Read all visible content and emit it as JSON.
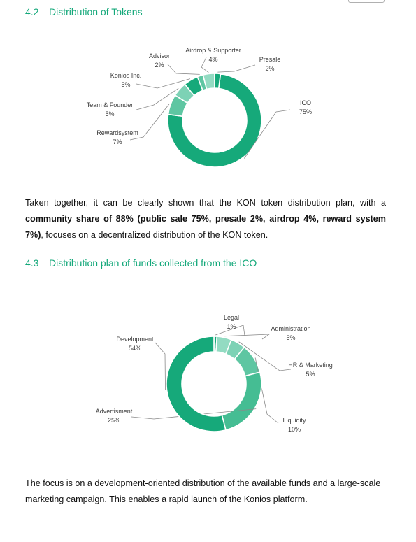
{
  "section_42": {
    "number": "4.2",
    "title": "Distribution of Tokens"
  },
  "paragraph_1": {
    "part1": "Taken together, it can be clearly shown that the KON token distribution plan, with a",
    "bold": "community share of 88% (public sale 75%, presale 2%, airdrop 4%, reward system 7%)",
    "part2": ",",
    "part3": "focuses on a decentralized distribution of the KON token."
  },
  "section_43": {
    "number": "4.3",
    "title": "Distribution plan of funds collected from the ICO"
  },
  "paragraph_2": {
    "line1": "The focus is on a development-oriented distribution of the available funds and a large-scale",
    "line2": "marketing campaign. This enables a rapid launch of the Konios platform."
  },
  "chart_data": [
    {
      "type": "pie",
      "subtype": "donut",
      "categories": [
        "ICO",
        "Rewardsystem",
        "Team & Founder",
        "Konios Inc.",
        "Advisor",
        "Airdrop & Supporter",
        "Presale"
      ],
      "values": [
        75,
        7,
        5,
        5,
        2,
        4,
        2
      ],
      "labels": [
        {
          "name": "ICO",
          "value": "75%"
        },
        {
          "name": "Rewardsystem",
          "value": "7%"
        },
        {
          "name": "Team & Founder",
          "value": "5%"
        },
        {
          "name": "Konios Inc.",
          "value": "5%"
        },
        {
          "name": "Advisor",
          "value": "2%"
        },
        {
          "name": "Airdrop & Supporter",
          "value": "4%"
        },
        {
          "name": "Presale",
          "value": "2%"
        }
      ],
      "colors": [
        "#16a97a",
        "#5ec6a2",
        "#7dd2b5",
        "#16a97a",
        "#5ec6a2",
        "#93dbc2",
        "#16a97a"
      ]
    },
    {
      "type": "pie",
      "subtype": "donut",
      "categories": [
        "Legal",
        "Administration",
        "HR & Marketing",
        "Liquidity",
        "Advertisment",
        "Development"
      ],
      "values": [
        1,
        5,
        5,
        10,
        25,
        54
      ],
      "labels": [
        {
          "name": "Legal",
          "value": "1%"
        },
        {
          "name": "Administration",
          "value": "5%"
        },
        {
          "name": "HR & Marketing",
          "value": "5%"
        },
        {
          "name": "Liquidity",
          "value": "10%"
        },
        {
          "name": "Advertisment",
          "value": "25%"
        },
        {
          "name": "Development",
          "value": "54%"
        }
      ],
      "colors": [
        "#16a97a",
        "#93dbc2",
        "#7dd2b5",
        "#5ec6a2",
        "#45bd93",
        "#16a97a"
      ]
    }
  ]
}
